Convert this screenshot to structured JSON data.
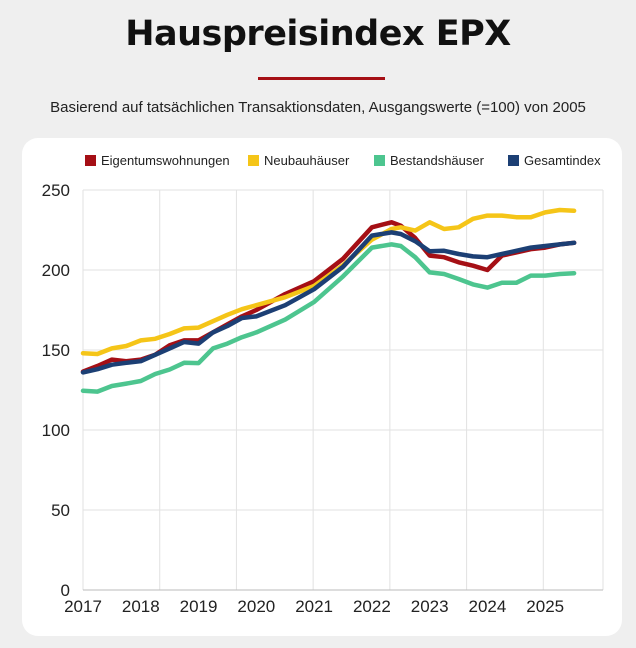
{
  "header": {
    "title": "Hauspreisindex EPX",
    "subtitle": "Basierend auf tatsächlichen Transaktionsdaten, Ausgangswerte (=100) von 2005"
  },
  "chart_data": {
    "type": "line",
    "title": "Hauspreisindex EPX",
    "subtitle": "Basierend auf tatsächlichen Transaktionsdaten, Ausgangswerte (=100) von 2005",
    "xlabel": "",
    "ylabel": "",
    "xlim": [
      2017,
      2026
    ],
    "ylim": [
      0,
      250
    ],
    "x_ticks": [
      "2017",
      "2018",
      "2019",
      "2020",
      "2021",
      "2022",
      "2023",
      "2024",
      "2025"
    ],
    "y_ticks": [
      "0",
      "50",
      "100",
      "150",
      "200",
      "250"
    ],
    "grid": true,
    "legend": "top",
    "x": [
      2017.0,
      2017.25,
      2017.5,
      2017.75,
      2018.0,
      2018.25,
      2018.5,
      2018.75,
      2019.0,
      2019.25,
      2019.5,
      2019.75,
      2020.0,
      2020.5,
      2021.0,
      2021.5,
      2022.0,
      2022.34,
      2022.5,
      2022.75,
      2023.0,
      2023.25,
      2023.5,
      2023.75,
      2024.0,
      2024.25,
      2024.5,
      2024.75,
      2025.0,
      2025.25,
      2025.5
    ],
    "series": [
      {
        "name": "Eigentumswohnungen",
        "color": "#a50f15",
        "values": [
          136.5,
          140,
          144,
          143,
          144,
          147,
          153,
          156,
          156,
          161,
          166,
          171,
          175,
          185,
          193,
          207,
          226.7,
          229.8,
          227.7,
          220,
          209,
          208,
          204.8,
          202.7,
          200,
          209,
          211,
          213,
          214,
          216,
          217
        ]
      },
      {
        "name": "Neubauhäuser",
        "color": "#f5c518",
        "values": [
          148,
          147.5,
          151,
          152.5,
          156,
          157,
          160,
          163.5,
          164,
          168,
          172,
          175.5,
          178,
          183,
          190,
          203,
          219,
          225.6,
          226.7,
          224.6,
          229.8,
          225.6,
          226.7,
          232,
          234,
          234,
          233,
          233,
          236,
          237.5,
          237
        ]
      },
      {
        "name": "Bestandshäuser",
        "color": "#4dc58f",
        "values": [
          124.5,
          124,
          127.5,
          129,
          130.6,
          135,
          137.8,
          142,
          141.8,
          151,
          154,
          158,
          161,
          169,
          180,
          196,
          214,
          216,
          215,
          208,
          198.5,
          197.5,
          194.4,
          191,
          189,
          192,
          192,
          196.5,
          196.5,
          197.5,
          198
        ]
      },
      {
        "name": "Gesamtindex",
        "color": "#1c3f74",
        "values": [
          136,
          138,
          140.8,
          142,
          143,
          147,
          151,
          155,
          154,
          161,
          165,
          170,
          171,
          178,
          188,
          202,
          221.5,
          223.5,
          222.5,
          218,
          211.7,
          212,
          210,
          208.5,
          208,
          210,
          212,
          214,
          215,
          216,
          217
        ]
      }
    ]
  }
}
